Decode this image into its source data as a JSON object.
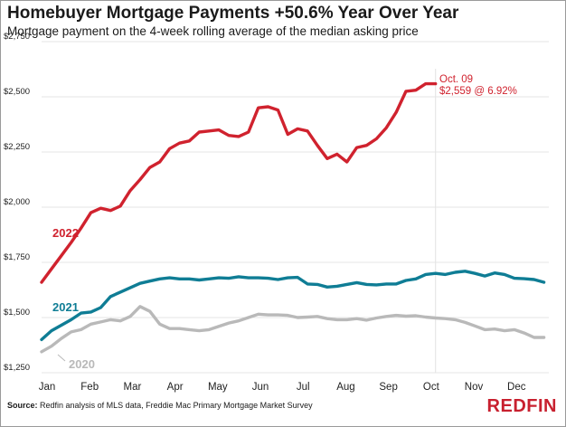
{
  "header": {
    "title": "Homebuyer Mortgage Payments +50.6% Year Over Year",
    "subtitle": "Mortgage payment on the 4-week rolling average of the median asking price"
  },
  "footer": {
    "source_label": "Source:",
    "source_text": "Redfin analysis of MLS data, Freddie Mac Primary Mortgage Market Survey",
    "logo": "REDFIN"
  },
  "chart_data": {
    "type": "line",
    "title": "Homebuyer Mortgage Payments +50.6% Year Over Year",
    "subtitle": "Mortgage payment on the 4-week rolling average of the median asking price",
    "xlabel": "",
    "ylabel": "",
    "ylim": [
      1250,
      2750
    ],
    "y_ticks": [
      1250,
      1500,
      1750,
      2000,
      2250,
      2500,
      2750
    ],
    "y_tick_labels": [
      "$1,250",
      "$1,500",
      "$1,750",
      "$2,000",
      "$2,250",
      "$2,500",
      "$2,750"
    ],
    "x_ticks": [
      "Jan",
      "Feb",
      "Mar",
      "Apr",
      "May",
      "Jun",
      "Jul",
      "Aug",
      "Sep",
      "Oct",
      "Nov",
      "Dec"
    ],
    "grid": true,
    "x_unit": "week of year",
    "series": [
      {
        "name": "2022",
        "color": "#d0222e",
        "x": [
          1,
          2,
          3,
          4,
          5,
          6,
          7,
          8,
          9,
          10,
          11,
          12,
          13,
          14,
          15,
          16,
          17,
          18,
          19,
          20,
          21,
          22,
          23,
          24,
          25,
          26,
          27,
          28,
          29,
          30,
          31,
          32,
          33,
          34,
          35,
          36,
          37,
          38,
          39,
          40,
          41
        ],
        "values": [
          1660,
          1720,
          1780,
          1840,
          1905,
          1975,
          1995,
          1985,
          2005,
          2075,
          2125,
          2180,
          2205,
          2265,
          2290,
          2300,
          2340,
          2345,
          2350,
          2325,
          2320,
          2340,
          2450,
          2455,
          2440,
          2330,
          2355,
          2345,
          2280,
          2220,
          2240,
          2205,
          2270,
          2280,
          2310,
          2360,
          2430,
          2525,
          2530,
          2559,
          2559
        ]
      },
      {
        "name": "2021",
        "color": "#0f7d95",
        "x": [
          1,
          2,
          3,
          4,
          5,
          6,
          7,
          8,
          9,
          10,
          11,
          12,
          13,
          14,
          15,
          16,
          17,
          18,
          19,
          20,
          21,
          22,
          23,
          24,
          25,
          26,
          27,
          28,
          29,
          30,
          31,
          32,
          33,
          34,
          35,
          36,
          37,
          38,
          39,
          40,
          41,
          42,
          43,
          44,
          45,
          46,
          47,
          48,
          49,
          50,
          51,
          52
        ],
        "values": [
          1400,
          1440,
          1465,
          1490,
          1520,
          1525,
          1545,
          1595,
          1615,
          1635,
          1655,
          1665,
          1675,
          1680,
          1675,
          1675,
          1670,
          1675,
          1680,
          1678,
          1685,
          1680,
          1680,
          1678,
          1672,
          1680,
          1682,
          1652,
          1650,
          1638,
          1642,
          1650,
          1658,
          1650,
          1648,
          1652,
          1652,
          1668,
          1675,
          1695,
          1700,
          1695,
          1705,
          1710,
          1700,
          1688,
          1702,
          1695,
          1678,
          1676,
          1672,
          1660
        ]
      },
      {
        "name": "2020",
        "color": "#b9b9b9",
        "x": [
          1,
          2,
          3,
          4,
          5,
          6,
          7,
          8,
          9,
          10,
          11,
          12,
          13,
          14,
          15,
          16,
          17,
          18,
          19,
          20,
          21,
          22,
          23,
          24,
          25,
          26,
          27,
          28,
          29,
          30,
          31,
          32,
          33,
          34,
          35,
          36,
          37,
          38,
          39,
          40,
          41,
          42,
          43,
          44,
          45,
          46,
          47,
          48,
          49,
          50,
          51,
          52
        ],
        "values": [
          1345,
          1370,
          1405,
          1435,
          1445,
          1470,
          1480,
          1490,
          1485,
          1505,
          1550,
          1528,
          1470,
          1450,
          1450,
          1445,
          1440,
          1445,
          1460,
          1475,
          1485,
          1500,
          1515,
          1512,
          1512,
          1510,
          1500,
          1502,
          1505,
          1495,
          1490,
          1490,
          1495,
          1488,
          1498,
          1505,
          1510,
          1506,
          1508,
          1502,
          1498,
          1495,
          1490,
          1478,
          1462,
          1445,
          1448,
          1440,
          1445,
          1430,
          1410,
          1410
        ]
      }
    ],
    "annotations": [
      {
        "text": "Oct. 09",
        "color": "#d0222e"
      },
      {
        "text": "$2,559 @ 6.92%",
        "color": "#d0222e"
      }
    ],
    "series_labels": [
      {
        "text": "2022",
        "color": "#d0222e"
      },
      {
        "text": "2021",
        "color": "#0f7d95"
      },
      {
        "text": "2020",
        "color": "#b9b9b9"
      }
    ]
  }
}
